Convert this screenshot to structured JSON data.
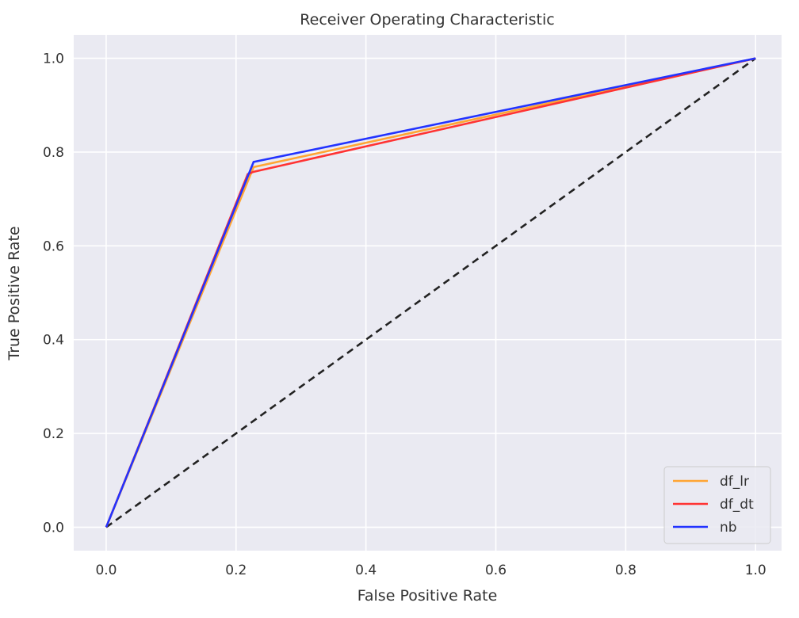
{
  "chart_data": {
    "type": "line",
    "title": "Receiver Operating Characteristic",
    "xlabel": "False Positive Rate",
    "ylabel": "True Positive Rate",
    "xlim": [
      -0.05,
      1.04
    ],
    "ylim": [
      -0.05,
      1.05
    ],
    "xticks": [
      0.0,
      0.2,
      0.4,
      0.6,
      0.8,
      1.0
    ],
    "yticks": [
      0.0,
      0.2,
      0.4,
      0.6,
      0.8,
      1.0
    ],
    "tick_labels": {
      "x": [
        "0.0",
        "0.2",
        "0.4",
        "0.6",
        "0.8",
        "1.0"
      ],
      "y": [
        "0.0",
        "0.2",
        "0.4",
        "0.6",
        "0.8",
        "1.0"
      ]
    },
    "grid": true,
    "legend_position": "bottom-right",
    "background_color": "#eaeaf2",
    "series": [
      {
        "name": "df_lr",
        "color": "#ffa533",
        "x": [
          0.0,
          0.227,
          1.0
        ],
        "y": [
          0.0,
          0.768,
          1.0
        ]
      },
      {
        "name": "df_dt",
        "color": "#ff3333",
        "x": [
          0.0,
          0.218,
          0.227,
          1.0
        ],
        "y": [
          0.0,
          0.753,
          0.758,
          1.0
        ]
      },
      {
        "name": "nb",
        "color": "#2233ff",
        "x": [
          0.0,
          0.227,
          1.0
        ],
        "y": [
          0.0,
          0.779,
          1.0
        ]
      }
    ],
    "reference_line": {
      "color": "#222222",
      "style": "dashed",
      "x": [
        0.0,
        1.0
      ],
      "y": [
        0.0,
        1.0
      ]
    }
  }
}
